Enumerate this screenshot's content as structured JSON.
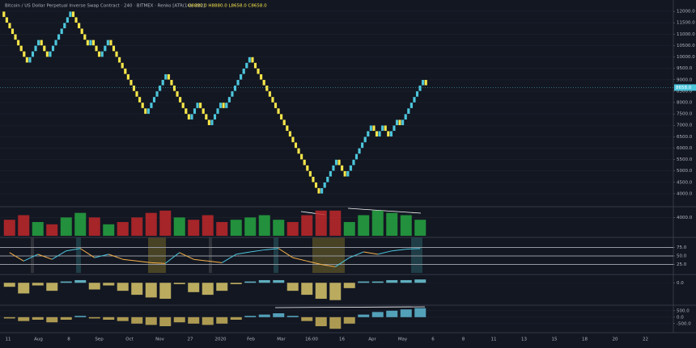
{
  "chart_data": [
    {
      "type": "renko",
      "title": "Bitcoin / US Dollar Perpetual Inverse Swap Contract · 240 · BITMEX · Renko [ATR(14), 222]",
      "ohlc": "O8880.0  H8880.0  L8658.0  C8658.0",
      "up_color": "#4dc6dc",
      "down_color": "#f7e64a",
      "bricks": [
        11750,
        11500,
        11250,
        11000,
        10750,
        10500,
        10250,
        10000,
        9750,
        10000,
        10250,
        10500,
        10750,
        10500,
        10250,
        10000,
        10250,
        10500,
        10750,
        11000,
        11250,
        11500,
        11750,
        12000,
        11750,
        11500,
        11250,
        11000,
        10750,
        10500,
        10750,
        10500,
        10250,
        10000,
        10250,
        10500,
        10750,
        10500,
        10250,
        10000,
        9750,
        9500,
        9250,
        9000,
        8750,
        8500,
        8250,
        8000,
        7750,
        7500,
        7750,
        8000,
        8250,
        8500,
        8750,
        9000,
        9250,
        9000,
        8750,
        8500,
        8250,
        8000,
        7750,
        7500,
        7250,
        7500,
        7750,
        8000,
        7750,
        7500,
        7250,
        7000,
        7250,
        7500,
        7750,
        8000,
        7750,
        8000,
        8250,
        8500,
        8750,
        9000,
        9250,
        9500,
        9750,
        10000,
        9750,
        9500,
        9250,
        9000,
        8750,
        8500,
        8250,
        8000,
        7750,
        7500,
        7250,
        7000,
        6750,
        6500,
        6250,
        6000,
        5750,
        5500,
        5250,
        5000,
        4750,
        4500,
        4250,
        4000,
        4250,
        4500,
        4750,
        5000,
        5250,
        5500,
        5250,
        5000,
        4750,
        5000,
        5250,
        5500,
        5750,
        6000,
        6250,
        6500,
        6750,
        7000,
        6750,
        6500,
        6750,
        7000,
        6750,
        6500,
        6750,
        7000,
        7250,
        7000,
        7250,
        7500,
        7750,
        8000,
        8250,
        8500,
        8750,
        9000,
        8750
      ],
      "last_price": {
        "value": 8658,
        "label": "8658.0"
      },
      "ylim": [
        3500,
        12500
      ],
      "yticks": [
        {
          "value": 4000,
          "label": "4000.0"
        },
        {
          "value": 4500,
          "label": "4500.0"
        },
        {
          "value": 5000,
          "label": "5000.0"
        },
        {
          "value": 5500,
          "label": "5500.0"
        },
        {
          "value": 6000,
          "label": "6000.0"
        },
        {
          "value": 6500,
          "label": "6500.0"
        },
        {
          "value": 7000,
          "label": "7000.0"
        },
        {
          "value": 7500,
          "label": "7500.0"
        },
        {
          "value": 8000,
          "label": "8000.0"
        },
        {
          "value": 8500,
          "label": "8500.0"
        },
        {
          "value": 9000,
          "label": "9000.0"
        },
        {
          "value": 9500,
          "label": "9500.0"
        },
        {
          "value": 10000,
          "label": "10000.0"
        },
        {
          "value": 10500,
          "label": "10500.0"
        },
        {
          "value": 11000,
          "label": "11000.0"
        },
        {
          "value": 11500,
          "label": "11500.0"
        },
        {
          "value": 12000,
          "label": "12000.0"
        }
      ],
      "xtick_labels": [
        "11",
        "Aug",
        "8",
        "Sep",
        "Oct",
        "Nov",
        "27",
        "2020",
        "Feb",
        "Mar",
        "16:00",
        "16",
        "Apr",
        "May",
        "6",
        "8",
        "11",
        "13",
        "15",
        "18",
        "20",
        "22"
      ]
    },
    {
      "type": "bar",
      "series": [
        {
          "name": "bull",
          "color": "#26a641",
          "values": [
            null,
            null,
            3000,
            null,
            4000,
            5000,
            null,
            2500,
            null,
            null,
            null,
            null,
            4000,
            null,
            null,
            null,
            3500,
            4000,
            4500,
            3500,
            null,
            null,
            null,
            null,
            3000,
            4500,
            5500,
            5000,
            4500,
            3500
          ]
        },
        {
          "name": "bear",
          "color": "#c0282a",
          "values": [
            3500,
            4500,
            null,
            2500,
            null,
            null,
            4000,
            null,
            3000,
            4000,
            5000,
            5500,
            null,
            3500,
            4500,
            3000,
            null,
            null,
            null,
            null,
            3000,
            4500,
            5500,
            5500,
            null,
            null,
            null,
            null,
            null,
            null
          ]
        }
      ],
      "ylim": [
        0,
        6000
      ],
      "yticks": [
        {
          "value": 4000,
          "label": "4000.0"
        }
      ]
    },
    {
      "type": "line",
      "up_color": "#4dc6dc",
      "down_color": "#f7b34a",
      "values": [
        60,
        35,
        55,
        40,
        65,
        72,
        45,
        55,
        40,
        35,
        30,
        28,
        60,
        40,
        35,
        30,
        55,
        62,
        68,
        72,
        45,
        35,
        25,
        18,
        45,
        62,
        55,
        65,
        70,
        72
      ],
      "ylim": [
        0,
        100
      ],
      "yticks": [
        {
          "value": 25,
          "label": "25.0"
        },
        {
          "value": 50,
          "label": "50.0"
        },
        {
          "value": 75,
          "label": "75.0"
        }
      ]
    },
    {
      "type": "bar",
      "color": "#6ec9d8",
      "negative_color": "#d8c56a",
      "values": [
        -0.3,
        -0.8,
        -0.2,
        -0.6,
        0.1,
        0.2,
        -0.5,
        -0.2,
        -0.6,
        -0.9,
        -1.1,
        -1.2,
        -0.1,
        -0.7,
        -0.9,
        -0.6,
        -0.1,
        0.1,
        0.2,
        0.2,
        -0.6,
        -0.9,
        -1.2,
        -1.3,
        -0.4,
        0.1,
        0.1,
        0.2,
        0.2,
        0.25
      ],
      "ylim": [
        -1.5,
        0.5
      ],
      "yticks": [
        {
          "value": 0,
          "label": "0.0"
        }
      ]
    },
    {
      "type": "bar",
      "color": "#5fb8d4",
      "negative_color": "#c9b25a",
      "values": [
        -100,
        -300,
        -200,
        -400,
        -200,
        100,
        -100,
        -200,
        -300,
        -500,
        -600,
        -700,
        -400,
        -500,
        -600,
        -500,
        -200,
        100,
        200,
        300,
        100,
        -300,
        -700,
        -900,
        -500,
        200,
        400,
        500,
        600,
        700
      ],
      "ylim": [
        -1200,
        800
      ],
      "yticks": [
        {
          "value": 500,
          "label": "500.0"
        },
        {
          "value": 0,
          "label": "0.0"
        },
        {
          "value": -500,
          "label": "-500.0"
        }
      ]
    }
  ]
}
